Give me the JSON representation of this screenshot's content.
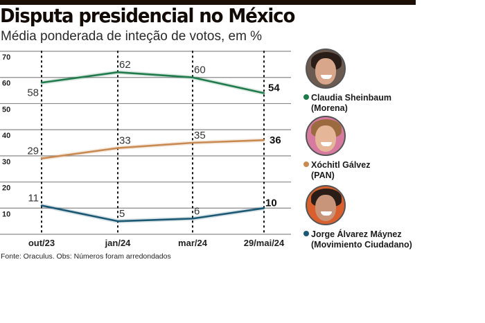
{
  "header": {
    "title": "Disputa presidencial no México",
    "subtitle": "Média ponderada de inteção de votos, em %"
  },
  "footer": {
    "source": "Fonte: Oraculus. Obs: Números foram arredondados"
  },
  "colors": {
    "sheinbaum": "#1f7a4c",
    "galvez": "#c98a52",
    "maynez": "#1b5873",
    "grid": "#8a8a8a",
    "top_bar": "#1c0f06"
  },
  "legend": [
    {
      "name": "Claudia Sheinbaum",
      "party": "(Morena)",
      "color": "#1f7a4c",
      "avatar": "photo-claudia-sheinbaum"
    },
    {
      "name": "Xóchitl Gálvez",
      "party": "(PAN)",
      "color": "#c98a52",
      "avatar": "photo-xochitl-galvez"
    },
    {
      "name": "Jorge Álvarez Máynez",
      "party": "(Movimiento Ciudadano)",
      "color": "#1b5873",
      "avatar": "photo-jorge-alvarez-maynez"
    }
  ],
  "chart_data": {
    "type": "line",
    "title": "Disputa presidencial no México",
    "subtitle": "Média ponderada de inteção de votos, em %",
    "xlabel": "",
    "ylabel": "",
    "categories": [
      "out/23",
      "jan/24",
      "mar/24",
      "29/mai/24"
    ],
    "yticks": [
      10,
      20,
      30,
      40,
      50,
      60,
      70
    ],
    "ylim": [
      0,
      70
    ],
    "grid": "horizontal solid, vertical dotted at each category",
    "legend_position": "right",
    "series": [
      {
        "name": "Claudia Sheinbaum (Morena)",
        "color": "#1f7a4c",
        "values": [
          58,
          62,
          60,
          54
        ],
        "labels": [
          "58",
          "62",
          "60",
          "54"
        ]
      },
      {
        "name": "Xóchitl Gálvez (PAN)",
        "color": "#c98a52",
        "values": [
          29,
          33,
          35,
          36
        ],
        "labels": [
          "29",
          "33",
          "35",
          "36"
        ]
      },
      {
        "name": "Jorge Álvarez Máynez (Movimiento Ciudadano)",
        "color": "#1b5873",
        "values": [
          11,
          5,
          6,
          10
        ],
        "labels": [
          "11",
          "5",
          "6",
          "10"
        ]
      }
    ],
    "source": "Fonte: Oraculus. Obs: Números foram arredondados"
  }
}
